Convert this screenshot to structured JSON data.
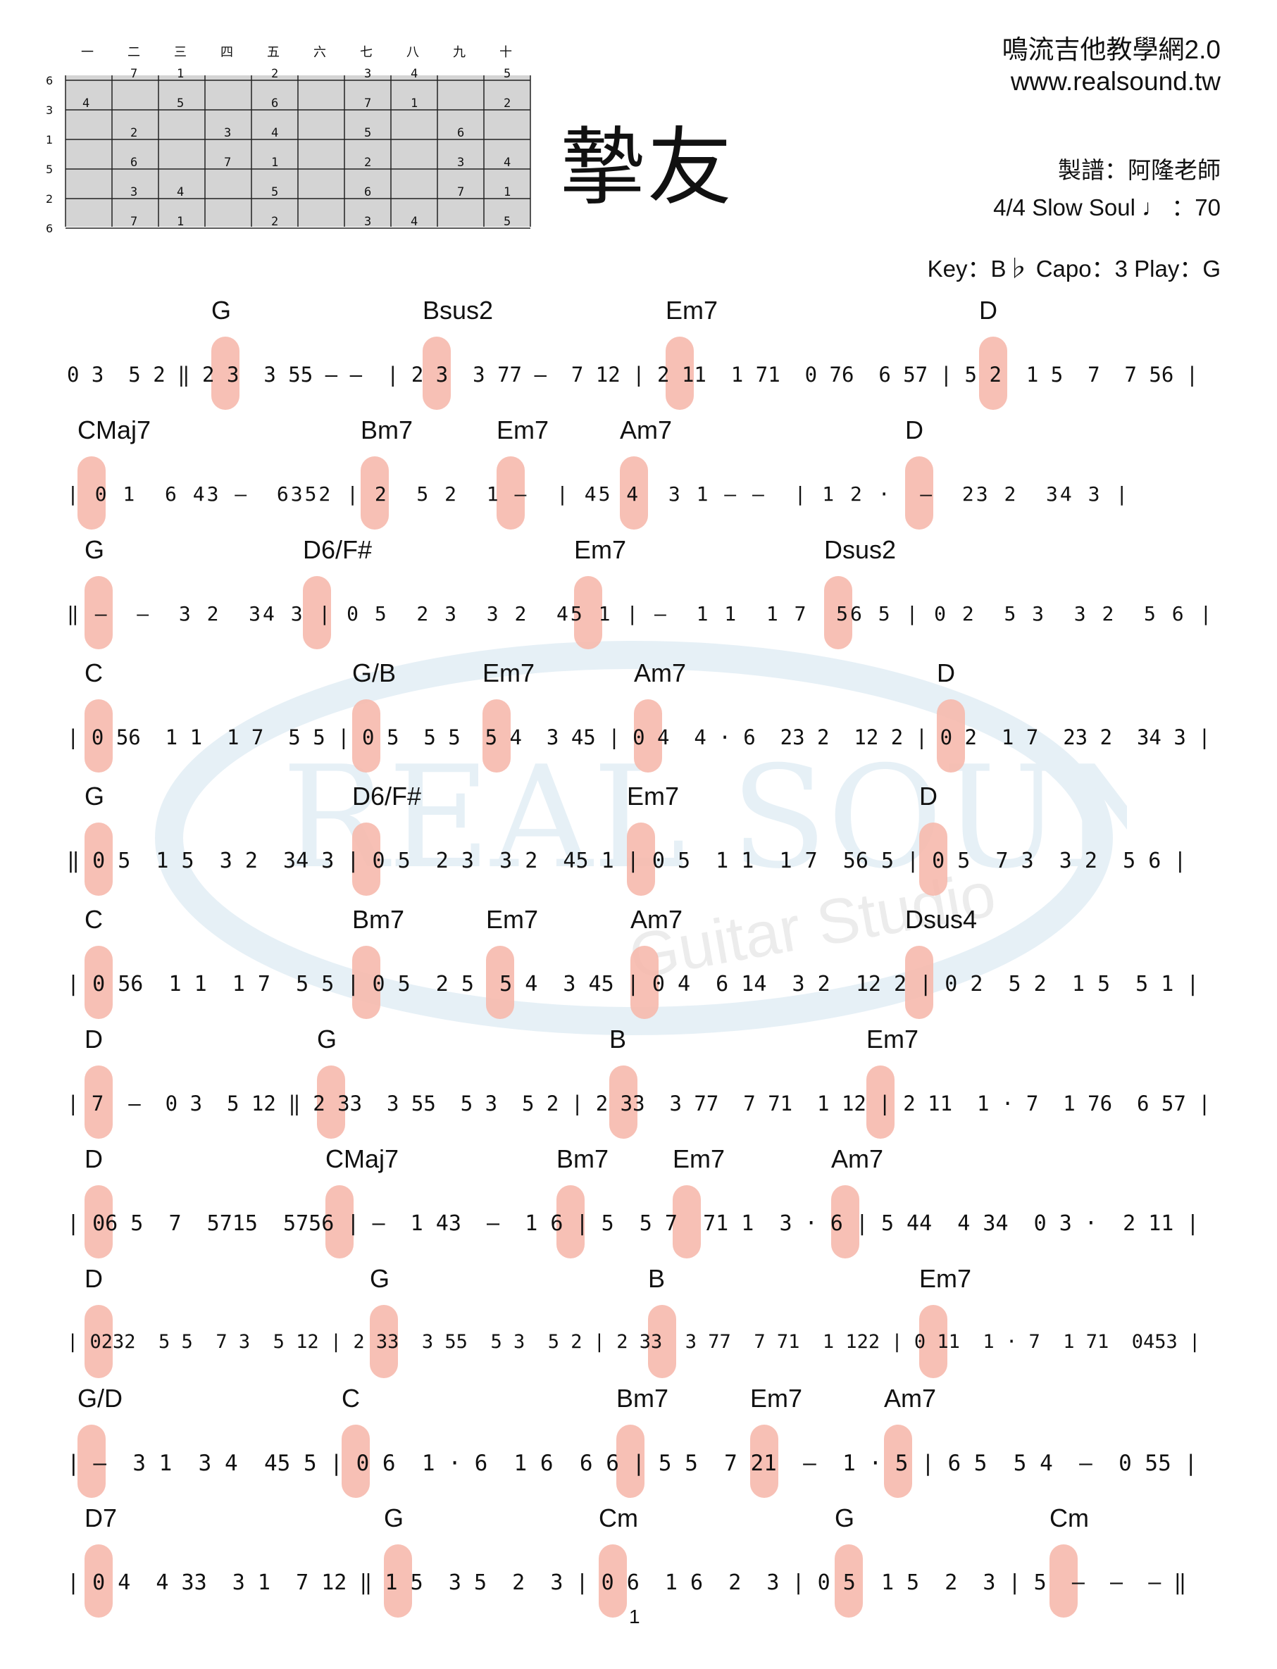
{
  "title": "摯友",
  "site_name": "鳴流吉他教學網2.0",
  "site_url": "www.realsound.tw",
  "arranger": "製譜：阿隆老師",
  "tempo_line": "4/4   Slow Soul   ♩ ：70",
  "key_line": "Key：B♭   Capo：3   Play：G",
  "page_number": "1",
  "watermark": {
    "brand": "REAL SOUND",
    "sub": "Guitar Studio"
  },
  "fretboard": {
    "frets": [
      "一",
      "二",
      "三",
      "四",
      "五",
      "六",
      "七",
      "八",
      "九",
      "十"
    ],
    "strings": [
      "6",
      "3",
      "1",
      "5",
      "2",
      "6"
    ]
  },
  "colors": {
    "pill": "#f6b9ad",
    "red_note": "#c8341c",
    "ink": "#111111"
  },
  "rows": [
    {
      "chords": [
        "G",
        "Bsus2",
        "Em7",
        "D"
      ],
      "notes": "0 3  5 2 ‖ 2 3  3 55 – –  | 2 3  3 77 –  7 12 | 2 11  1 71  0 76  6 57 | 5 2  1 5  7  7 56 |"
    },
    {
      "chords": [
        "CMaj7",
        "Bm7",
        "Em7",
        "Am7",
        "D"
      ],
      "notes": "| 0 1  6 43 –  6352 | 2  5 2  1 –  | 45 4  3 1 – –  | 1 2 ·  –  23 2  34 3 |"
    },
    {
      "chords": [
        "G",
        "D6/F#",
        "Em7",
        "Dsus2"
      ],
      "notes": "‖ –  –  3 2  34 3 | 0 5  2 3  3 2  45 1 | –  1 1  1 7  56 5 | 0 2  5 3  3 2  5 6 |"
    },
    {
      "chords": [
        "C",
        "G/B",
        "Em7",
        "Am7",
        "D"
      ],
      "notes": "| 0 56  1 1  1 7  5 5 | 0 5  5 5  5 4  3 45 | 0 4  4 · 6  23 2  12 2 | 0 2  1 7  23 2  34 3 |"
    },
    {
      "chords": [
        "G",
        "D6/F#",
        "Em7",
        "D"
      ],
      "notes": "‖ 0 5  1 5  3 2  34 3 | 0 5  2 3  3 2  45 1 | 0 5  1 1  1 7  56 5 | 0 5  7 3  3 2  5 6 |"
    },
    {
      "chords": [
        "C",
        "Bm7",
        "Em7",
        "Am7",
        "Dsus4"
      ],
      "notes": "| 0 56  1 1  1 7  5 5 | 0 5  2 5  5 4  3 45 | 0 4  6 14  3 2  12 2 | 0 2  5 2  1 5  5 1 |"
    },
    {
      "chords": [
        "D",
        "G",
        "B",
        "Em7"
      ],
      "notes": "| 7  –  0 3  5 12 ‖ 2 33  3 55  5 3  5 2 | 2 33  3 77  7 71  1 12 | 2 11  1 · 7  1 76  6 57 |"
    },
    {
      "chords": [
        "D",
        "CMaj7",
        "Bm7",
        "Em7",
        "Am7"
      ],
      "notes": "| 06 5  7  5715  5756 | –  1 43  –  1 6 | 5  5 7  71 1  3 · 6 | 5 44  4 34  0 3 ·  2 11 |"
    },
    {
      "chords": [
        "D",
        "G",
        "B",
        "Em7"
      ],
      "notes": "| 0232  5 5  7 3  5 12 | 2 33  3 55  5 3  5 2 | 2 33  3 77  7 71  1 122 | 0 11  1 · 7  1 71  0453 |"
    },
    {
      "chords": [
        "G/D",
        "C",
        "Bm7",
        "Em7",
        "Am7"
      ],
      "notes": "| –  3 1  3 4  45 5 | 0 6  1 · 6  1 6  6 6 | 5 5  7 21  –  1 · 5 | 6 5  5 4  –  0 55 |"
    },
    {
      "chords": [
        "D7",
        "G",
        "Cm",
        "G",
        "Cm"
      ],
      "notes": "| 0 4  4 33  3 1  7 12 ‖ 1 5  3 5  2  3 | 0 6  1 6  2  3 | 0 5  1 5  2  3 | 5  –  –  – ‖"
    }
  ]
}
